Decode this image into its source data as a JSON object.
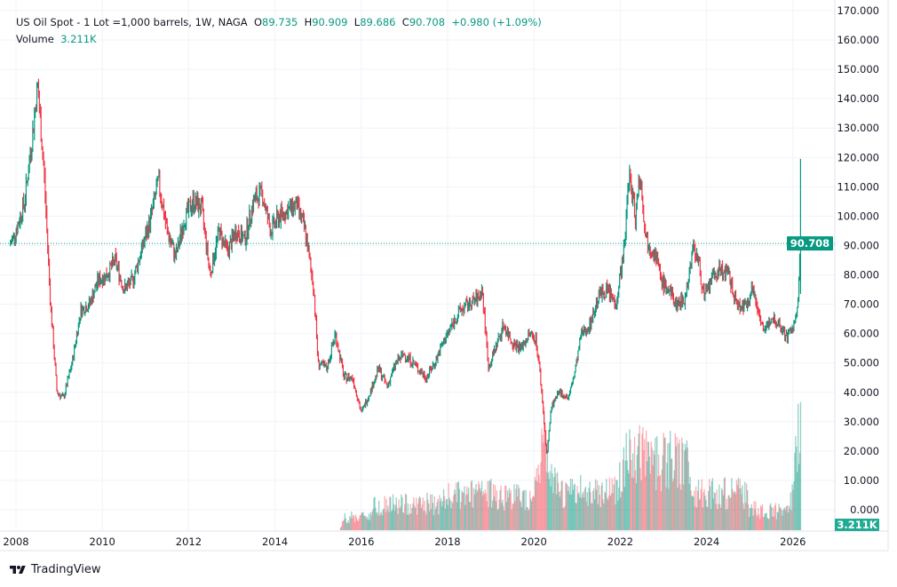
{
  "header": {
    "symbol": "US Oil Spot - 1 Lot =1,000 barrels, 1W, NAGA",
    "open_label": "O",
    "open": "89.735",
    "high_label": "H",
    "high": "90.909",
    "low_label": "L",
    "low": "89.686",
    "close_label": "C",
    "close": "90.708",
    "change": "+0.980 (+1.09%)",
    "volume_label": "Volume",
    "volume": "3.211K"
  },
  "footer": {
    "brand": "TradingView"
  },
  "colors": {
    "up": "#089981",
    "down": "#f23645",
    "grid": "#f0f3fa",
    "text": "#131722"
  },
  "chart_data": {
    "type": "candlestick",
    "title": "",
    "xlabel": "",
    "ylabel": "",
    "xlim": [
      2007.8,
      2026.9
    ],
    "ylim": [
      0,
      170
    ],
    "grid": true,
    "y_ticks": [
      "0.000",
      "10.000",
      "20.000",
      "30.000",
      "40.000",
      "50.000",
      "60.000",
      "70.000",
      "80.000",
      "90.000",
      "100.000",
      "110.000",
      "120.000",
      "130.000",
      "140.000",
      "150.000",
      "160.000",
      "170.000"
    ],
    "x_ticks": [
      "2008",
      "2010",
      "2012",
      "2014",
      "2016",
      "2018",
      "2020",
      "2022",
      "2024",
      "2026"
    ],
    "last_price": 90.708,
    "last_price_label": "90.708",
    "last_bar_high": 119.5,
    "last_volume_label": "3.211K",
    "price": [
      [
        2007.85,
        90
      ],
      [
        2008.0,
        95
      ],
      [
        2008.2,
        105
      ],
      [
        2008.4,
        130
      ],
      [
        2008.5,
        145
      ],
      [
        2008.65,
        115
      ],
      [
        2008.8,
        70
      ],
      [
        2008.95,
        40
      ],
      [
        2009.1,
        38
      ],
      [
        2009.3,
        50
      ],
      [
        2009.5,
        68
      ],
      [
        2009.7,
        70
      ],
      [
        2009.9,
        78
      ],
      [
        2010.1,
        80
      ],
      [
        2010.3,
        85
      ],
      [
        2010.5,
        75
      ],
      [
        2010.7,
        78
      ],
      [
        2010.9,
        88
      ],
      [
        2011.1,
        98
      ],
      [
        2011.3,
        112
      ],
      [
        2011.5,
        95
      ],
      [
        2011.7,
        86
      ],
      [
        2011.9,
        99
      ],
      [
        2012.1,
        105
      ],
      [
        2012.3,
        103
      ],
      [
        2012.5,
        80
      ],
      [
        2012.7,
        95
      ],
      [
        2012.9,
        88
      ],
      [
        2013.1,
        95
      ],
      [
        2013.3,
        92
      ],
      [
        2013.5,
        105
      ],
      [
        2013.7,
        108
      ],
      [
        2013.9,
        95
      ],
      [
        2014.1,
        100
      ],
      [
        2014.3,
        102
      ],
      [
        2014.5,
        104
      ],
      [
        2014.7,
        95
      ],
      [
        2014.9,
        75
      ],
      [
        2015.0,
        50
      ],
      [
        2015.2,
        48
      ],
      [
        2015.4,
        60
      ],
      [
        2015.6,
        45
      ],
      [
        2015.8,
        45
      ],
      [
        2016.0,
        33
      ],
      [
        2016.2,
        40
      ],
      [
        2016.4,
        48
      ],
      [
        2016.6,
        42
      ],
      [
        2016.8,
        50
      ],
      [
        2017.0,
        53
      ],
      [
        2017.2,
        50
      ],
      [
        2017.5,
        45
      ],
      [
        2017.7,
        50
      ],
      [
        2017.9,
        57
      ],
      [
        2018.1,
        63
      ],
      [
        2018.3,
        68
      ],
      [
        2018.5,
        70
      ],
      [
        2018.7,
        72
      ],
      [
        2018.8,
        75
      ],
      [
        2018.95,
        48
      ],
      [
        2019.1,
        55
      ],
      [
        2019.3,
        63
      ],
      [
        2019.5,
        57
      ],
      [
        2019.7,
        55
      ],
      [
        2019.9,
        60
      ],
      [
        2020.05,
        58
      ],
      [
        2020.15,
        45
      ],
      [
        2020.3,
        18
      ],
      [
        2020.4,
        35
      ],
      [
        2020.6,
        40
      ],
      [
        2020.8,
        38
      ],
      [
        2020.95,
        47
      ],
      [
        2021.1,
        60
      ],
      [
        2021.3,
        63
      ],
      [
        2021.5,
        73
      ],
      [
        2021.7,
        75
      ],
      [
        2021.9,
        70
      ],
      [
        2022.1,
        90
      ],
      [
        2022.2,
        115
      ],
      [
        2022.35,
        100
      ],
      [
        2022.45,
        115
      ],
      [
        2022.6,
        92
      ],
      [
        2022.8,
        88
      ],
      [
        2022.95,
        78
      ],
      [
        2023.1,
        75
      ],
      [
        2023.3,
        70
      ],
      [
        2023.5,
        72
      ],
      [
        2023.7,
        90
      ],
      [
        2023.8,
        85
      ],
      [
        2023.95,
        72
      ],
      [
        2024.1,
        78
      ],
      [
        2024.3,
        82
      ],
      [
        2024.5,
        80
      ],
      [
        2024.7,
        70
      ],
      [
        2024.9,
        69
      ],
      [
        2025.05,
        76
      ],
      [
        2025.2,
        68
      ],
      [
        2025.35,
        60
      ],
      [
        2025.5,
        66
      ],
      [
        2025.7,
        63
      ],
      [
        2025.85,
        59
      ],
      [
        2026.0,
        62
      ],
      [
        2026.1,
        67
      ],
      [
        2026.18,
        90.708
      ]
    ],
    "volume_k": [
      [
        2007.85,
        0
      ],
      [
        2015.5,
        0
      ],
      [
        2015.6,
        15
      ],
      [
        2016.2,
        18
      ],
      [
        2016.3,
        30
      ],
      [
        2017.8,
        32
      ],
      [
        2018.0,
        40
      ],
      [
        2018.8,
        45
      ],
      [
        2019.9,
        40
      ],
      [
        2020.1,
        70
      ],
      [
        2020.25,
        110
      ],
      [
        2020.4,
        60
      ],
      [
        2020.6,
        45
      ],
      [
        2021.9,
        50
      ],
      [
        2022.1,
        85
      ],
      [
        2022.5,
        90
      ],
      [
        2023.0,
        85
      ],
      [
        2023.6,
        80
      ],
      [
        2023.7,
        45
      ],
      [
        2024.9,
        45
      ],
      [
        2025.0,
        25
      ],
      [
        2025.9,
        22
      ],
      [
        2026.0,
        50
      ],
      [
        2026.15,
        140
      ],
      [
        2026.18,
        3.211
      ]
    ]
  }
}
